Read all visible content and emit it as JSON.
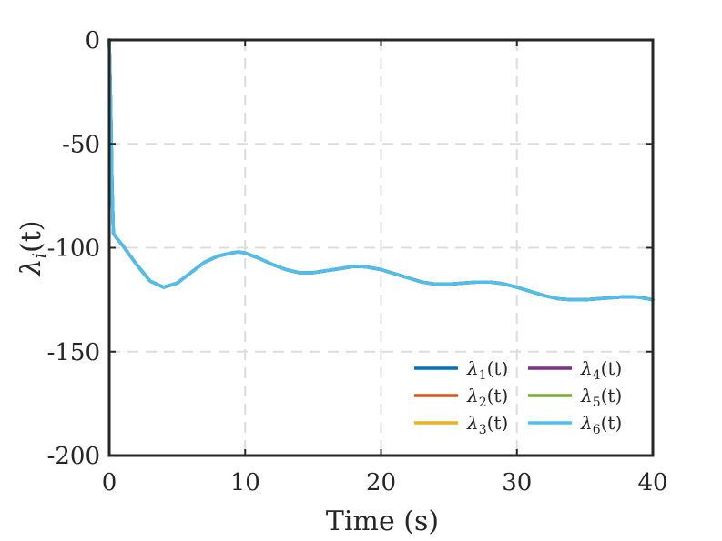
{
  "chart_data": {
    "type": "line",
    "title": "",
    "xlabel": "Time (s)",
    "ylabel": "λi(t)",
    "ylabel_main": "λ",
    "ylabel_sub": "i",
    "ylabel_tail": "(t)",
    "xlim": [
      0,
      40
    ],
    "ylim": [
      -200,
      0
    ],
    "xticks": [
      0,
      10,
      20,
      30,
      40
    ],
    "yticks": [
      0,
      -50,
      -100,
      -150,
      -200
    ],
    "xtick_labels": [
      "0",
      "10",
      "20",
      "30",
      "40"
    ],
    "ytick_labels": [
      "0",
      "-50",
      "-100",
      "-150",
      "-200"
    ],
    "grid": true,
    "legend_position": "bottom-right",
    "x": [
      0,
      0.1,
      0.2,
      0.3,
      0.5,
      1,
      2,
      3,
      4,
      5,
      6,
      7,
      8,
      9,
      9.5,
      10,
      11,
      12,
      13,
      14,
      15,
      16,
      17,
      18,
      18.5,
      19,
      20,
      21,
      22,
      23,
      24,
      25,
      26,
      27,
      28,
      29,
      30,
      31,
      32,
      33,
      34,
      35,
      36,
      37,
      38,
      39,
      40
    ],
    "series": [
      {
        "name": "λ1(t)",
        "sub": "1",
        "color": "#0072BD",
        "values": [
          0,
          -30,
          -70,
          -93,
          -95,
          -99,
          -108,
          -116,
          -119,
          -117,
          -112,
          -107,
          -104,
          -102.5,
          -102,
          -102.5,
          -105,
          -108,
          -110.5,
          -112,
          -112,
          -111,
          -110,
          -109,
          -109,
          -109.3,
          -110.5,
          -112.5,
          -114.5,
          -116.5,
          -117.5,
          -117.5,
          -117,
          -116.5,
          -116.5,
          -117.3,
          -119,
          -121,
          -123,
          -124.5,
          -125,
          -125,
          -124.5,
          -124,
          -123.5,
          -123.8,
          -125
        ]
      },
      {
        "name": "λ2(t)",
        "sub": "2",
        "color": "#D95319",
        "values": [
          0,
          -30,
          -70,
          -93,
          -95,
          -99,
          -108,
          -116,
          -119,
          -117,
          -112,
          -107,
          -104,
          -102.5,
          -102,
          -102.5,
          -105,
          -108,
          -110.5,
          -112,
          -112,
          -111,
          -110,
          -109,
          -109,
          -109.3,
          -110.5,
          -112.5,
          -114.5,
          -116.5,
          -117.5,
          -117.5,
          -117,
          -116.5,
          -116.5,
          -117.3,
          -119,
          -121,
          -123,
          -124.5,
          -125,
          -125,
          -124.5,
          -124,
          -123.5,
          -123.8,
          -125
        ]
      },
      {
        "name": "λ3(t)",
        "sub": "3",
        "color": "#EDB120",
        "values": [
          0,
          -30,
          -70,
          -93,
          -95,
          -99,
          -108,
          -116,
          -119,
          -117,
          -112,
          -107,
          -104,
          -102.5,
          -102,
          -102.5,
          -105,
          -108,
          -110.5,
          -112,
          -112,
          -111,
          -110,
          -109,
          -109,
          -109.3,
          -110.5,
          -112.5,
          -114.5,
          -116.5,
          -117.5,
          -117.5,
          -117,
          -116.5,
          -116.5,
          -117.3,
          -119,
          -121,
          -123,
          -124.5,
          -125,
          -125,
          -124.5,
          -124,
          -123.5,
          -123.8,
          -125
        ]
      },
      {
        "name": "λ4(t)",
        "sub": "4",
        "color": "#7E2F8E",
        "values": [
          0,
          -30,
          -70,
          -93,
          -95,
          -99,
          -108,
          -116,
          -119,
          -117,
          -112,
          -107,
          -104,
          -102.5,
          -102,
          -102.5,
          -105,
          -108,
          -110.5,
          -112,
          -112,
          -111,
          -110,
          -109,
          -109,
          -109.3,
          -110.5,
          -112.5,
          -114.5,
          -116.5,
          -117.5,
          -117.5,
          -117,
          -116.5,
          -116.5,
          -117.3,
          -119,
          -121,
          -123,
          -124.5,
          -125,
          -125,
          -124.5,
          -124,
          -123.5,
          -123.8,
          -125
        ]
      },
      {
        "name": "λ5(t)",
        "sub": "5",
        "color": "#77AC30",
        "values": [
          0,
          -30,
          -70,
          -93,
          -95,
          -99,
          -108,
          -116,
          -119,
          -117,
          -112,
          -107,
          -104,
          -102.5,
          -102,
          -102.5,
          -105,
          -108,
          -110.5,
          -112,
          -112,
          -111,
          -110,
          -109,
          -109,
          -109.3,
          -110.5,
          -112.5,
          -114.5,
          -116.5,
          -117.5,
          -117.5,
          -117,
          -116.5,
          -116.5,
          -117.3,
          -119,
          -121,
          -123,
          -124.5,
          -125,
          -125,
          -124.5,
          -124,
          -123.5,
          -123.8,
          -125
        ]
      },
      {
        "name": "λ6(t)",
        "sub": "6",
        "color": "#4DBEEE",
        "values": [
          0,
          -30,
          -70,
          -93,
          -95,
          -99,
          -108,
          -116,
          -119,
          -117,
          -112,
          -107,
          -104,
          -102.5,
          -102,
          -102.5,
          -105,
          -108,
          -110.5,
          -112,
          -112,
          -111,
          -110,
          -109,
          -109,
          -109.3,
          -110.5,
          -112.5,
          -114.5,
          -116.5,
          -117.5,
          -117.5,
          -117,
          -116.5,
          -116.5,
          -117.3,
          -119,
          -121,
          -123,
          -124.5,
          -125,
          -125,
          -124.5,
          -124,
          -123.5,
          -123.8,
          -125
        ]
      }
    ]
  }
}
